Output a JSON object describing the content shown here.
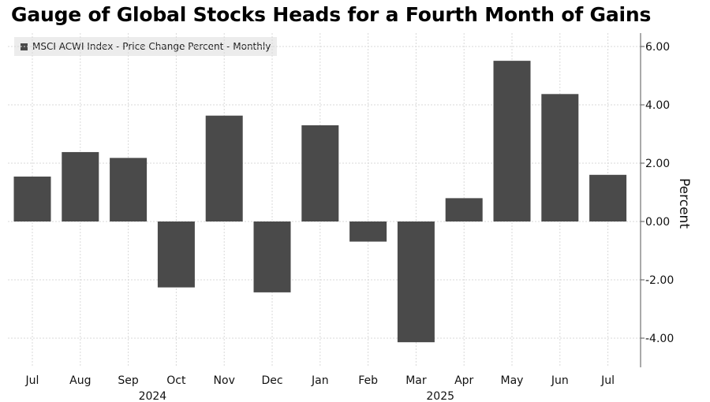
{
  "title": "Gauge of Global Stocks Heads for a Fourth Month of Gains",
  "legend_label": "MSCI ACWI Index - Price Change Percent - Monthly",
  "colors": {
    "bar": "#4a4a4a",
    "grid": "#d9d9d9",
    "axis": "#555555"
  },
  "chart_data": {
    "type": "bar",
    "categories": [
      "Jul",
      "Aug",
      "Sep",
      "Oct",
      "Nov",
      "Dec",
      "Jan",
      "Feb",
      "Mar",
      "Apr",
      "May",
      "Jun",
      "Jul"
    ],
    "year_labels": [
      {
        "label": "2024",
        "category_index": 3
      },
      {
        "label": "2025",
        "category_index": 9
      }
    ],
    "series": [
      {
        "name": "MSCI ACWI Index - Price Change Percent - Monthly",
        "values": [
          1.54,
          2.38,
          2.18,
          -2.26,
          3.63,
          -2.43,
          3.3,
          -0.69,
          -4.14,
          0.8,
          5.51,
          4.37,
          1.6
        ]
      }
    ],
    "ylabel": "Percent",
    "yticks": [
      6,
      4,
      2,
      0,
      -2,
      -4
    ],
    "ytick_labels": [
      "6.00",
      "4.00",
      "2.00",
      "0.00",
      "-2.00",
      "-4.00"
    ],
    "ylim": [
      -5,
      6
    ],
    "y_axis_position": "right",
    "grid": true,
    "legend": "top-left"
  }
}
